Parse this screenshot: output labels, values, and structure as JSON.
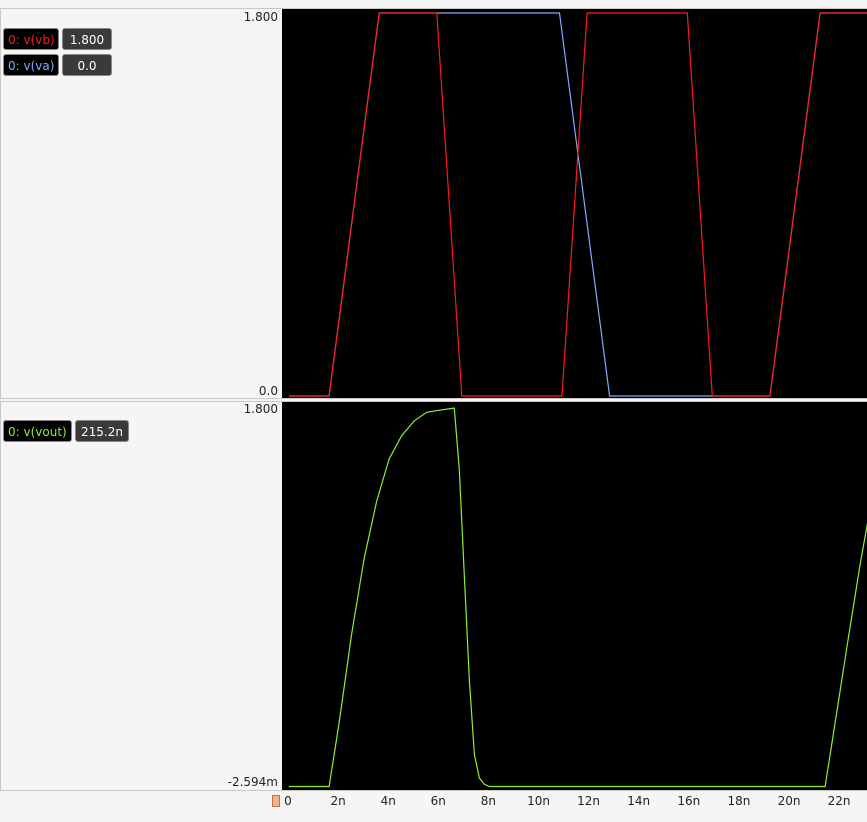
{
  "panels": [
    {
      "traces": [
        {
          "name": "0: v(vb)",
          "value": "1.800",
          "color": "#ff1a1a"
        },
        {
          "name": "0: v(va)",
          "value": "0.0",
          "color": "#7faaff"
        }
      ],
      "y_max_label": "1.800",
      "y_min_label": "0.0"
    },
    {
      "traces": [
        {
          "name": "0: v(vout)",
          "value": "215.2n",
          "color": "#8ef02a"
        }
      ],
      "y_max_label": "1.800",
      "y_min_label": "-2.594m"
    }
  ],
  "x_ticks": [
    "0",
    "2n",
    "4n",
    "6n",
    "8n",
    "10n",
    "12n",
    "14n",
    "16n",
    "18n",
    "20n",
    "22n"
  ],
  "chart_data": [
    {
      "type": "line",
      "xlim": [
        0,
        23.4
      ],
      "ylim": [
        0,
        1.8
      ],
      "series": [
        {
          "name": "0: v(va)",
          "color": "#7faaff",
          "x": [
            0,
            1.6,
            3.6,
            10.8,
            12.8,
            19.2,
            21.2,
            23.4
          ],
          "y": [
            0,
            0,
            1.8,
            1.8,
            0,
            0,
            1.8,
            1.8
          ]
        },
        {
          "name": "0: v(vb)",
          "color": "#ff1a1a",
          "x": [
            0,
            1.6,
            3.6,
            5.9,
            6.9,
            10.9,
            11.9,
            15.9,
            16.9,
            19.2,
            21.2,
            23.4
          ],
          "y": [
            0,
            0,
            1.8,
            1.8,
            0,
            0,
            1.8,
            1.8,
            0,
            0,
            1.8,
            1.8
          ]
        }
      ]
    },
    {
      "type": "line",
      "xlim": [
        0,
        23.4
      ],
      "ylim": [
        -0.002594,
        1.8
      ],
      "series": [
        {
          "name": "0: v(vout)",
          "color": "#8ef02a",
          "x": [
            0,
            1.6,
            2.0,
            2.5,
            3.0,
            3.5,
            4.0,
            4.5,
            5.0,
            5.5,
            6.0,
            6.6,
            6.8,
            7.0,
            7.2,
            7.4,
            7.6,
            7.8,
            8.0,
            21.4,
            21.8,
            22.3,
            22.8,
            23.4
          ],
          "y": [
            0,
            0,
            0.3,
            0.72,
            1.08,
            1.35,
            1.55,
            1.66,
            1.73,
            1.77,
            1.78,
            1.79,
            1.5,
            1.0,
            0.5,
            0.15,
            0.04,
            0.01,
            0,
            0,
            0.3,
            0.68,
            1.05,
            1.45
          ]
        }
      ]
    }
  ]
}
